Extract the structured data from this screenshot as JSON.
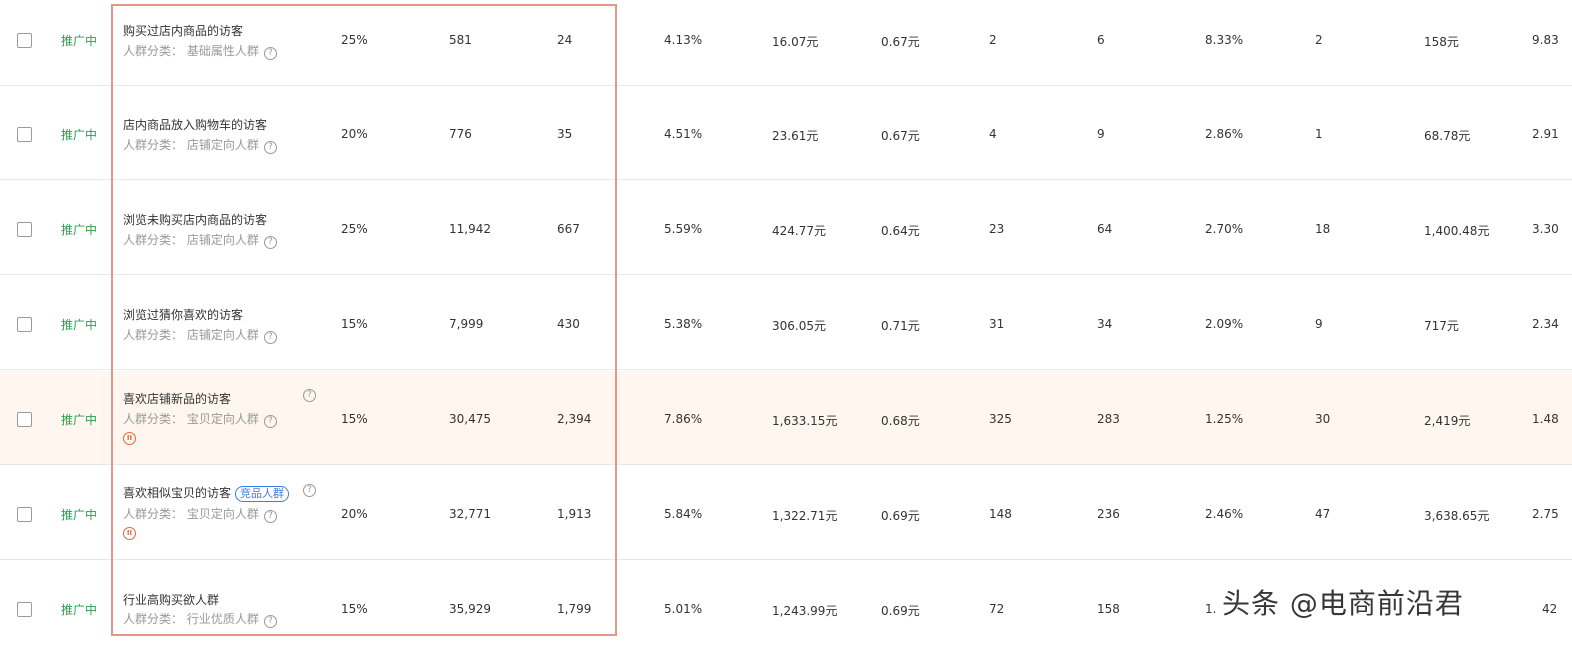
{
  "status_label": "推广中",
  "category_prefix": "人群分类：",
  "help_glyph": "?",
  "pause_glyph": "II",
  "rows": [
    {
      "name": "购买过店内商品的访客",
      "category": "基础属性人群",
      "premium": "25%",
      "c1": "581",
      "c2": "24",
      "c3": "4.13%",
      "c4": "16.07元",
      "c5": "0.67元",
      "c6": "2",
      "c7": "6",
      "c8": "8.33%",
      "c9": "2",
      "c10": "158元",
      "c11": "9.83"
    },
    {
      "name": "店内商品放入购物车的访客",
      "category": "店铺定向人群",
      "premium": "20%",
      "c1": "776",
      "c2": "35",
      "c3": "4.51%",
      "c4": "23.61元",
      "c5": "0.67元",
      "c6": "4",
      "c7": "9",
      "c8": "2.86%",
      "c9": "1",
      "c10": "68.78元",
      "c11": "2.91"
    },
    {
      "name": "浏览未购买店内商品的访客",
      "category": "店铺定向人群",
      "premium": "25%",
      "c1": "11,942",
      "c2": "667",
      "c3": "5.59%",
      "c4": "424.77元",
      "c5": "0.64元",
      "c6": "23",
      "c7": "64",
      "c8": "2.70%",
      "c9": "18",
      "c10": "1,400.48元",
      "c11": "3.30"
    },
    {
      "name": "浏览过猜你喜欢的访客",
      "category": "店铺定向人群",
      "premium": "15%",
      "c1": "7,999",
      "c2": "430",
      "c3": "5.38%",
      "c4": "306.05元",
      "c5": "0.71元",
      "c6": "31",
      "c7": "34",
      "c8": "2.09%",
      "c9": "9",
      "c10": "717元",
      "c11": "2.34"
    },
    {
      "name": "喜欢店铺新品的访客",
      "category": "宝贝定向人群",
      "premium": "15%",
      "c1": "30,475",
      "c2": "2,394",
      "c3": "7.86%",
      "c4": "1,633.15元",
      "c5": "0.68元",
      "c6": "325",
      "c7": "283",
      "c8": "1.25%",
      "c9": "30",
      "c10": "2,419元",
      "c11": "1.48"
    },
    {
      "name": "喜欢相似宝贝的访客",
      "tag": "竞品人群",
      "category": "宝贝定向人群",
      "premium": "20%",
      "c1": "32,771",
      "c2": "1,913",
      "c3": "5.84%",
      "c4": "1,322.71元",
      "c5": "0.69元",
      "c6": "148",
      "c7": "236",
      "c8": "2.46%",
      "c9": "47",
      "c10": "3,638.65元",
      "c11": "2.75"
    },
    {
      "name": "行业高购买欲人群",
      "category": "行业优质人群",
      "premium": "15%",
      "c1": "35,929",
      "c2": "1,799",
      "c3": "5.01%",
      "c4": "1,243.99元",
      "c5": "0.69元",
      "c6": "72",
      "c7": "158",
      "c8": "1.",
      "c9": "",
      "c10": "",
      "c11": "42"
    }
  ],
  "watermark": "头条 @电商前沿君"
}
